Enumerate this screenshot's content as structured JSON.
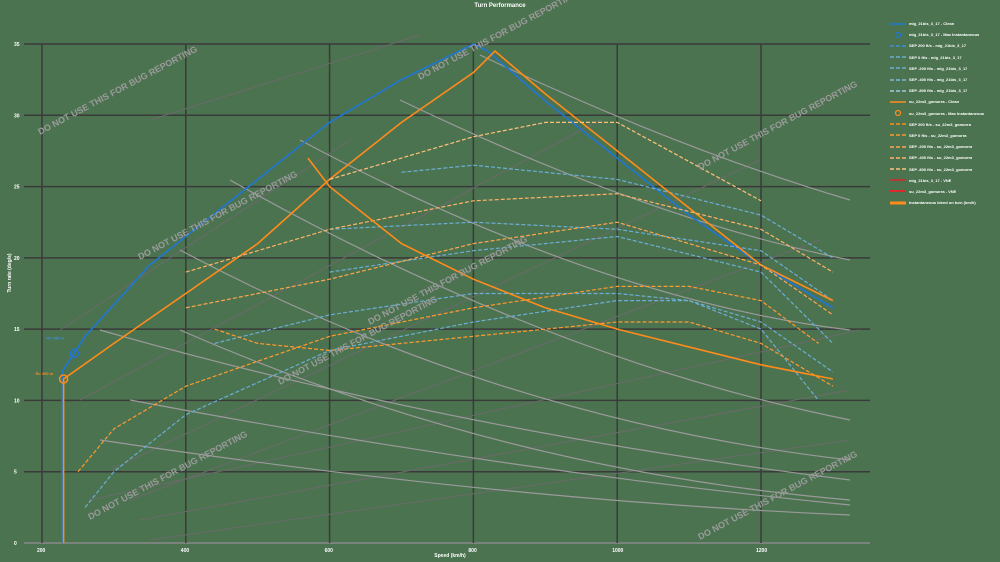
{
  "chart_data": {
    "type": "line",
    "title": "Turn Performance",
    "xlabel": "Speed (km/h)",
    "ylabel": "Turn rate (deg/s)",
    "xlim": [
      175,
      1320
    ],
    "ylim": [
      0,
      35
    ],
    "x_ticks": [
      200,
      400,
      600,
      800,
      1000,
      1200
    ],
    "y_ticks": [
      0,
      5,
      10,
      15,
      20,
      25,
      30,
      35
    ],
    "grid": true,
    "legend_position": "right",
    "watermark": "DO NOT USE THIS FOR BUG REPORTING",
    "annotations": [
      {
        "text": "R= 300 m",
        "color": "#ff8c1a",
        "x": 230,
        "y": 11.5
      },
      {
        "text": "R= 350 m",
        "color": "#3d8fd6",
        "x": 245,
        "y": 14
      }
    ],
    "series": [
      {
        "name": "mig_21bis_3_17 - Clean",
        "color": "#1f77d4",
        "style": "solid",
        "x": [
          228,
          228,
          260,
          350,
          500,
          600,
          700,
          800,
          820,
          900,
          1000,
          1100,
          1200,
          1300
        ],
        "y": [
          0,
          12,
          14.5,
          19.5,
          25.5,
          29.5,
          32.5,
          35,
          34.5,
          31,
          27,
          23,
          19.5,
          16.5
        ]
      },
      {
        "name": "mig_21bis_3_17 - Max Instantaneous",
        "color": "#1f77d4",
        "style": "marker",
        "x": [
          245
        ],
        "y": [
          13.3
        ]
      },
      {
        "name": "SEP 200 ft/s - mig_21bis_3_17",
        "color": "#6baed6",
        "style": "dash",
        "x": [
          440,
          600,
          800,
          1000,
          1100,
          1200,
          1300
        ],
        "y": [
          14,
          16,
          17.5,
          17.5,
          17,
          15.5,
          12
        ]
      },
      {
        "name": "SEP 0 ft/s - mig_21bis_3_17",
        "color": "#6baed6",
        "style": "dash",
        "x": [
          260,
          300,
          400,
          600,
          800,
          1000,
          1100,
          1200,
          1280
        ],
        "y": [
          2.5,
          5,
          9,
          13.5,
          15.5,
          17,
          17,
          15,
          10
        ]
      },
      {
        "name": "SEP -200 ft/s - mig_21bis_3_17",
        "color": "#6baed6",
        "style": "dash",
        "x": [
          600,
          800,
          1000,
          1200,
          1300
        ],
        "y": [
          19,
          20.5,
          21.5,
          19,
          14
        ]
      },
      {
        "name": "SEP -400 ft/s - mig_21bis_3_17",
        "color": "#6baed6",
        "style": "dash",
        "x": [
          600,
          800,
          1000,
          1200,
          1300
        ],
        "y": [
          22,
          22.5,
          22,
          20.5,
          17
        ]
      },
      {
        "name": "SEP -800 ft/s - mig_21bis_3_17",
        "color": "#6baed6",
        "style": "dash",
        "x": [
          700,
          800,
          1000,
          1200,
          1300
        ],
        "y": [
          26,
          26.5,
          25.5,
          23,
          20
        ]
      },
      {
        "name": "su_22m3_gomorra - Clean",
        "color": "#ff8c1a",
        "style": "solid",
        "x": [
          230,
          230,
          300,
          500,
          600,
          700,
          800,
          830,
          900,
          1000,
          1100,
          1200,
          1300
        ],
        "y": [
          0,
          11.5,
          14,
          21,
          25.5,
          29.5,
          33,
          34.5,
          31.5,
          27.5,
          23.5,
          19.5,
          17
        ]
      },
      {
        "name": "su_22m3_gomorra - Max Instantaneous",
        "color": "#ff8c1a",
        "style": "marker",
        "x": [
          230
        ],
        "y": [
          11.5
        ]
      },
      {
        "name": "SEP 200 ft/s - su_22m3_gomorra",
        "color": "#ff9a2e",
        "style": "dash",
        "x": [
          440,
          500,
          600,
          800,
          1000,
          1100,
          1200,
          1300
        ],
        "y": [
          15,
          14,
          13.5,
          14.5,
          15.5,
          15.5,
          14,
          11
        ]
      },
      {
        "name": "SEP 0 ft/s - su_22m3_gomorra",
        "color": "#ff9a2e",
        "style": "dash",
        "x": [
          250,
          300,
          400,
          600,
          800,
          1000,
          1100,
          1200,
          1280
        ],
        "y": [
          5,
          8,
          11,
          14.5,
          16.5,
          18,
          18,
          17,
          14
        ]
      },
      {
        "name": "SEP -200 ft/s - su_22m3_gomorra",
        "color": "#ffa64d",
        "style": "dash",
        "x": [
          400,
          600,
          800,
          1000,
          1200,
          1300
        ],
        "y": [
          16.5,
          18.5,
          21,
          22.5,
          19.5,
          16
        ]
      },
      {
        "name": "SEP -400 ft/s - su_22m3_gomorra",
        "color": "#ffb366",
        "style": "dash",
        "x": [
          400,
          600,
          800,
          1000,
          1200,
          1300
        ],
        "y": [
          19,
          22,
          24,
          24.5,
          22,
          19
        ]
      },
      {
        "name": "SEP -800 ft/s - su_22m3_gomorra",
        "color": "#ffc27a",
        "style": "dash",
        "x": [
          600,
          800,
          900,
          1000,
          1200
        ],
        "y": [
          25.5,
          28.5,
          29.5,
          29.5,
          24
        ]
      },
      {
        "name": "mig_21bis_3_17 - VNE",
        "color": "#d62728",
        "style": "solid",
        "x": [],
        "y": []
      },
      {
        "name": "su_22m3_gomorra - VNE",
        "color": "#d62728",
        "style": "dotted",
        "x": [],
        "y": []
      },
      {
        "name": "Instantaneous bleed on turn (km/h)",
        "color": "#ff8c1a",
        "style": "solid",
        "x": [
          570,
          600,
          700,
          800,
          900,
          1000,
          1200,
          1300
        ],
        "y": [
          27,
          25,
          21,
          18.5,
          16.5,
          15,
          12.5,
          11.5
        ]
      }
    ]
  },
  "legend": {
    "items": [
      {
        "label": "mig_21bis_3_17 - Clean",
        "color": "#1f77d4",
        "kind": "line"
      },
      {
        "label": "mig_21bis_3_17 - Max Instantaneous",
        "color": "#1f77d4",
        "kind": "circle"
      },
      {
        "label": "SEP 200 ft/s - mig_21bis_3_17",
        "color": "#3d8fd6",
        "kind": "dash"
      },
      {
        "label": "SEP 0 ft/s - mig_21bis_3_17",
        "color": "#6baed6",
        "kind": "dash"
      },
      {
        "label": "SEP -200 ft/s - mig_21bis_3_17",
        "color": "#6baed6",
        "kind": "dash"
      },
      {
        "label": "SEP -400 ft/s - mig_21bis_3_17",
        "color": "#7fb8de",
        "kind": "dash"
      },
      {
        "label": "SEP -800 ft/s - mig_21bis_3_17",
        "color": "#9ecae1",
        "kind": "dash"
      },
      {
        "label": "su_22m3_gomorra - Clean",
        "color": "#ff8c1a",
        "kind": "line"
      },
      {
        "label": "su_22m3_gomorra - Max Instantaneous",
        "color": "#ff8c1a",
        "kind": "circle"
      },
      {
        "label": "SEP 200 ft/s - su_22m3_gomorra",
        "color": "#ff8c1a",
        "kind": "dash"
      },
      {
        "label": "SEP 0 ft/s - su_22m3_gomorra",
        "color": "#ff9a2e",
        "kind": "dash"
      },
      {
        "label": "SEP -200 ft/s - su_22m3_gomorra",
        "color": "#ffa64d",
        "kind": "dash"
      },
      {
        "label": "SEP -400 ft/s - su_22m3_gomorra",
        "color": "#ffb366",
        "kind": "dash"
      },
      {
        "label": "SEP -800 ft/s - su_22m3_gomorra",
        "color": "#ffc27a",
        "kind": "dash"
      },
      {
        "label": "mig_21bis_3_17 - VNE",
        "color": "#d62728",
        "kind": "line"
      },
      {
        "label": "su_22m3_gomorra - VNE",
        "color": "#d62728",
        "kind": "dotted"
      },
      {
        "label": "Instantaneous bleed on turn (km/h)",
        "color": "#ff8c1a",
        "kind": "thick"
      }
    ]
  },
  "colors": {
    "background": "#4c7350",
    "grid": "#3a3a3a",
    "reference": "#8a8a8a"
  }
}
